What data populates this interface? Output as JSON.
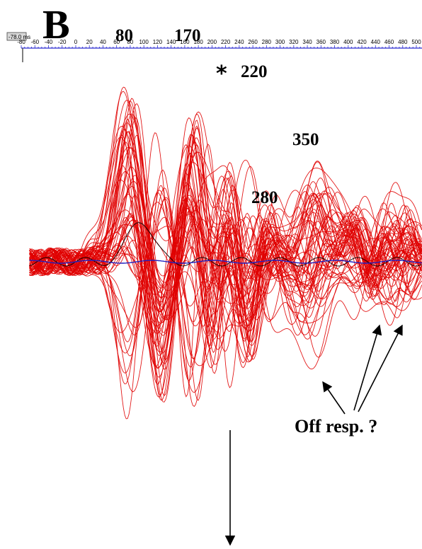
{
  "panel_label": "B",
  "cursor_readout": "-78.0 ms",
  "chart_data": {
    "type": "line",
    "title": "",
    "xlabel": "",
    "ylabel": "",
    "x_unit": "ms",
    "xlim": [
      -80,
      500
    ],
    "x_ticks": [
      -80,
      -60,
      -40,
      -20,
      0,
      20,
      40,
      60,
      80,
      100,
      120,
      140,
      160,
      180,
      200,
      220,
      240,
      260,
      280,
      300,
      320,
      340,
      360,
      380,
      400,
      420,
      440,
      460,
      480,
      500
    ],
    "grid": false,
    "legend": "none",
    "trace_color": "#e00000",
    "secondary_trace_colors": [
      "#000000",
      "#2020c0"
    ],
    "trace_count": 60,
    "peaks": [
      {
        "label": "80",
        "latency_ms": 80
      },
      {
        "label": "170",
        "latency_ms": 170
      },
      {
        "label": "220",
        "latency_ms": 220,
        "marked": true
      },
      {
        "label": "280",
        "latency_ms": 280
      },
      {
        "label": "350",
        "latency_ms": 350
      }
    ],
    "annotation": {
      "text": "Off resp. ?",
      "target_latencies_ms": [
        350,
        440,
        470
      ]
    }
  }
}
